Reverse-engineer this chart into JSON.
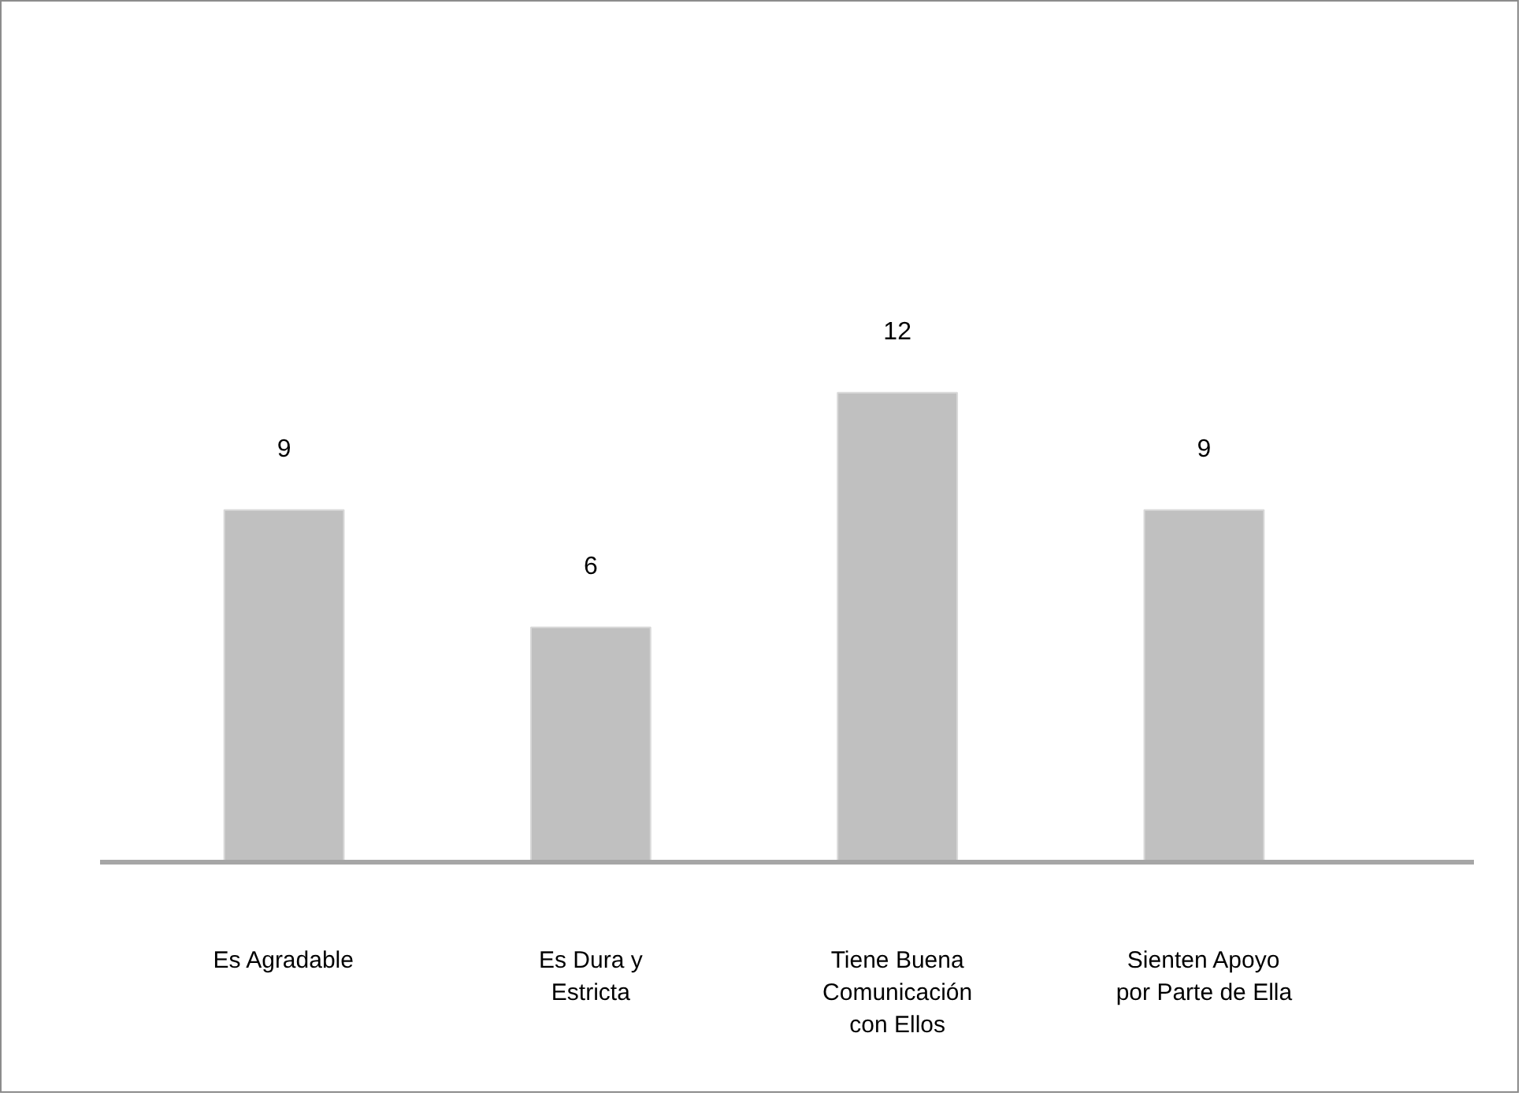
{
  "chart_data": {
    "type": "bar",
    "categories": [
      "Es Agradable",
      "Es Dura y\nEstricta",
      "Tiene Buena\nComunicación\ncon Ellos",
      "Sienten Apoyo\npor Parte de Ella"
    ],
    "values": [
      9,
      6,
      12,
      9
    ],
    "color": "#c0c0c0",
    "data_labels": true
  }
}
